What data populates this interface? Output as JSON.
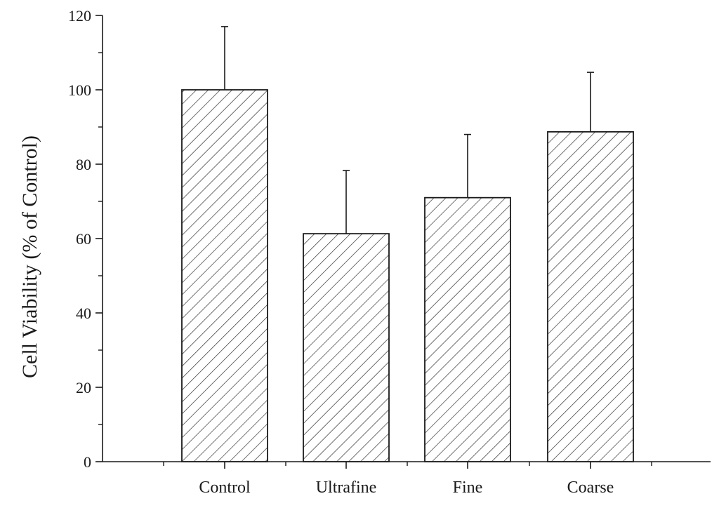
{
  "chart_data": {
    "type": "bar",
    "title": "",
    "xlabel": "",
    "ylabel": "Cell Viability (% of Control)",
    "categories": [
      "Control",
      "Ultrafine",
      "Fine",
      "Coarse"
    ],
    "values": [
      100,
      61.3,
      71,
      88.7
    ],
    "error_upper": [
      17,
      17,
      17,
      16
    ],
    "ylim": [
      0,
      120
    ],
    "yticks": [
      "0",
      "20",
      "40",
      "60",
      "80",
      "100",
      "120"
    ],
    "grid": false,
    "legend": "none",
    "bar_fill": "hatched",
    "colors": {
      "stroke": "#1a1a1a",
      "background": "#ffffff"
    }
  }
}
